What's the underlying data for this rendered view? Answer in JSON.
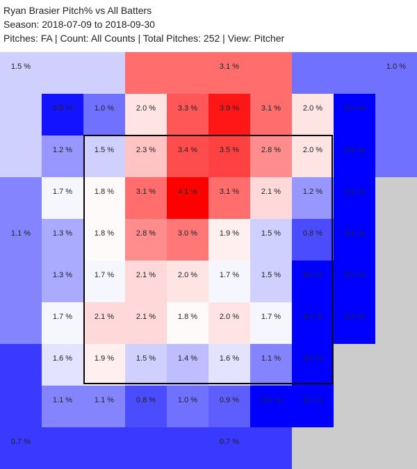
{
  "header": {
    "title": "Ryan Brasier Pitch% vs All Batters",
    "season": "Season: 2018-07-09 to 2018-09-30",
    "filters": "Pitches: FA | Count: All Counts | Total Pitches: 252 | View: Pitcher"
  },
  "chart_data": {
    "type": "heatmap",
    "title": "Ryan Brasier Pitch% vs All Batters",
    "subtitle": "Season: 2018-07-09 to 2018-09-30",
    "pitch_type": "FA",
    "count": "All Counts",
    "total_pitches": 252,
    "view": "Pitcher",
    "unit": "%",
    "scale": {
      "low_color": "#0000ff",
      "mid_color": "#ffffff",
      "high_color": "#ff0000",
      "no_data_color": "#cccccc"
    },
    "outer_zones": [
      {
        "zone": "top-left",
        "value": 1.5,
        "label": "1.5 %"
      },
      {
        "zone": "top-center",
        "value": 3.1,
        "label": "3.1 %"
      },
      {
        "zone": "top-right",
        "value": 1.0,
        "label": "1.0 %"
      },
      {
        "zone": "left",
        "value": 1.1,
        "label": "1.1 %"
      },
      {
        "zone": "bottom-left",
        "value": 0.7,
        "label": "0.7 %"
      },
      {
        "zone": "bottom-center",
        "value": 0.7,
        "label": "0.7 %"
      },
      {
        "zone": "right",
        "value": null,
        "label": ""
      },
      {
        "zone": "bottom-right",
        "value": null,
        "label": ""
      }
    ],
    "grid_rows": [
      [
        0.5,
        1.0,
        2.0,
        3.3,
        3.9,
        3.1,
        2.0,
        0.4
      ],
      [
        1.2,
        1.5,
        2.3,
        3.4,
        3.5,
        2.8,
        2.0,
        0.4
      ],
      [
        1.7,
        1.8,
        3.1,
        4.1,
        3.1,
        2.1,
        1.2,
        0.4
      ],
      [
        1.3,
        1.8,
        2.8,
        3.0,
        1.9,
        1.5,
        0.8,
        0.4
      ],
      [
        1.3,
        1.7,
        2.1,
        2.0,
        1.7,
        1.5,
        0.4,
        0.4
      ],
      [
        1.7,
        2.1,
        2.1,
        1.8,
        2.0,
        1.7,
        0.4,
        0.4
      ],
      [
        1.6,
        1.9,
        1.5,
        1.4,
        1.6,
        1.1,
        0.4,
        null
      ],
      [
        1.1,
        1.1,
        0.8,
        1.0,
        0.9,
        0.4,
        0.4,
        null
      ]
    ]
  }
}
